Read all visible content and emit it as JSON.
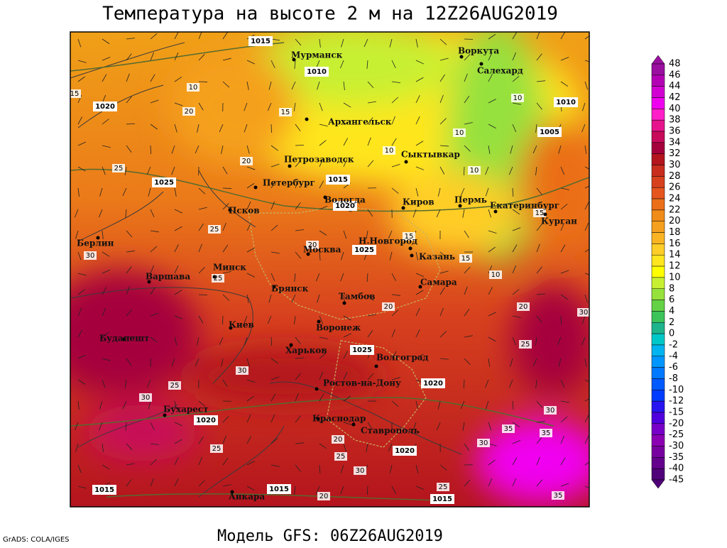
{
  "header": {
    "title": "Температура на высоте 2 м на 12Z26AUG2019"
  },
  "footer": {
    "model": "Модель GFS: 06Z26AUG2019",
    "credit": "GrADS: COLA/IGES"
  },
  "cities": [
    "Мурманск",
    "Воркута",
    "Салехард",
    "Архангельск",
    "Сыктывкар",
    "Петрозаводск",
    "Петербург",
    "Вологда",
    "Киров",
    "Пермь",
    "Екатеринбург",
    "Курган",
    "Псков",
    "Н.Новгород",
    "Москва",
    "Казань",
    "Берлин",
    "Минск",
    "Варшава",
    "Брянск",
    "Тамбов",
    "Самара",
    "Киев",
    "Воронеж",
    "Будапешт",
    "Харьков",
    "Волгоград",
    "Ростов-на-Дону",
    "Бухарест",
    "Краснодар",
    "Ставрополь",
    "Анкара"
  ],
  "isobar_labels": [
    1015,
    1010,
    1020,
    1025,
    1015,
    1020,
    1025,
    1010,
    1005,
    1025,
    1020,
    1020,
    1020,
    1015,
    1015,
    1015
  ],
  "isotherm_labels": [
    10,
    20,
    25,
    20,
    25,
    20,
    15,
    15,
    10,
    20,
    25,
    30,
    30,
    25,
    30,
    25,
    20,
    25,
    30,
    35,
    35,
    30,
    25,
    30,
    20,
    15,
    10,
    10,
    10,
    10,
    15,
    15,
    35,
    20,
    25,
    30
  ],
  "colorbar": {
    "levels": [
      48,
      46,
      44,
      42,
      40,
      38,
      36,
      34,
      32,
      30,
      28,
      26,
      24,
      22,
      20,
      18,
      16,
      14,
      12,
      10,
      8,
      6,
      4,
      2,
      0,
      -2,
      -4,
      -6,
      -8,
      -10,
      -12,
      -15,
      -20,
      -25,
      -30,
      -35,
      -40,
      -45
    ],
    "colors": [
      "#9a0fa0",
      "#b400b4",
      "#d200d2",
      "#f000f0",
      "#ff1ec8",
      "#e6148c",
      "#c80a5a",
      "#a5003c",
      "#b4141e",
      "#c82d1e",
      "#d7411e",
      "#e6551e",
      "#eb6e19",
      "#f08c19",
      "#f5a01e",
      "#fab423",
      "#ffcd28",
      "#ffe61e",
      "#ffff00",
      "#c8f032",
      "#96e13c",
      "#64d246",
      "#3cc35a",
      "#1eb48c",
      "#00c8c8",
      "#00b4f0",
      "#0096ff",
      "#0078ff",
      "#005aff",
      "#003cff",
      "#2814f0",
      "#5000dc",
      "#7800c8",
      "#8c00b4",
      "#7800a0",
      "#64008c",
      "#500078"
    ]
  }
}
